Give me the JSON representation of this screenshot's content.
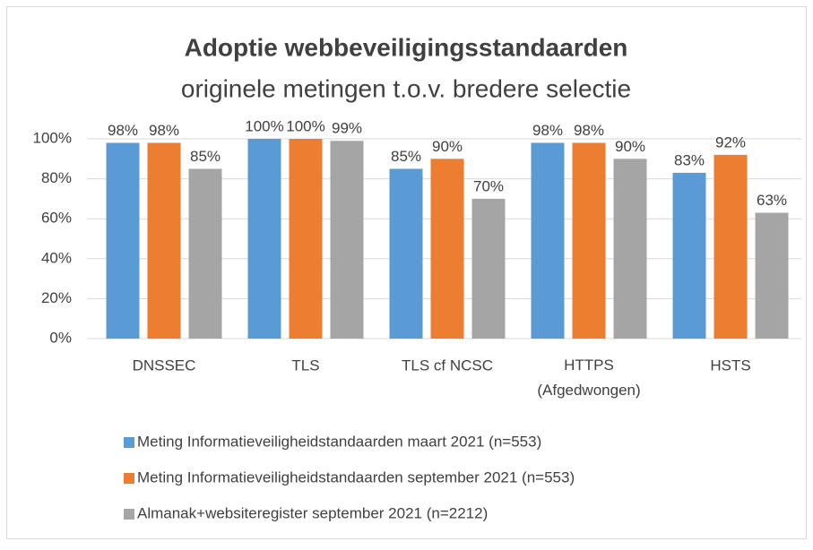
{
  "chart_data": {
    "type": "bar",
    "title": "Adoptie webbeveiligingsstandaarden",
    "subtitle": "originele metingen t.o.v. bredere selectie",
    "categories": [
      "DNSSEC",
      "TLS",
      "TLS cf NCSC",
      "HTTPS\n(Afgedwongen)",
      "HSTS"
    ],
    "series": [
      {
        "name": "Meting Informatieveiligheidstandaarden maart 2021 (n=553)",
        "color": "#5b9bd5",
        "values": [
          98,
          100,
          85,
          98,
          83
        ],
        "value_labels": [
          "98%",
          "100%",
          "85%",
          "98%",
          "83%"
        ]
      },
      {
        "name": "Meting Informatieveiligheidstandaarden september 2021 (n=553)",
        "color": "#ed7d31",
        "values": [
          98,
          100,
          90,
          98,
          92
        ],
        "value_labels": [
          "98%",
          "100%",
          "90%",
          "98%",
          "92%"
        ]
      },
      {
        "name": "Almanak+websiteregister september 2021 (n=2212)",
        "color": "#a5a5a5",
        "values": [
          85,
          99,
          70,
          90,
          63
        ],
        "value_labels": [
          "85%",
          "99%",
          "70%",
          "90%",
          "63%"
        ]
      }
    ],
    "ylim": [
      0,
      100
    ],
    "yticks": [
      {
        "value": 0,
        "label": "0%"
      },
      {
        "value": 20,
        "label": "20%"
      },
      {
        "value": 40,
        "label": "40%"
      },
      {
        "value": 60,
        "label": "60%"
      },
      {
        "value": 80,
        "label": "80%"
      },
      {
        "value": 100,
        "label": "100%"
      }
    ],
    "grid": true,
    "legend": "bottom"
  }
}
